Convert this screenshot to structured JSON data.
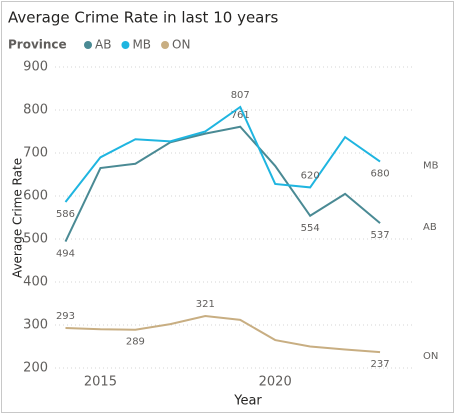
{
  "chart_data": {
    "type": "line",
    "title": "Average Crime Rate in last 10 years",
    "legend_title": "Province",
    "x_label": "Year",
    "y_label": "Average Crime Rate",
    "x": [
      2014,
      2015,
      2016,
      2017,
      2018,
      2019,
      2020,
      2021,
      2022,
      2023
    ],
    "series": [
      {
        "name": "AB",
        "color": "#4a8a94",
        "values": [
          494,
          665,
          675,
          725,
          745,
          761,
          670,
          554,
          605,
          537
        ],
        "value_labels": [
          "494",
          null,
          null,
          null,
          null,
          "761",
          null,
          "554",
          null,
          "537"
        ]
      },
      {
        "name": "MB",
        "color": "#1fb5e0",
        "values": [
          586,
          690,
          732,
          727,
          750,
          807,
          628,
          620,
          737,
          680
        ],
        "value_labels": [
          "586",
          null,
          null,
          null,
          null,
          "807",
          null,
          "620",
          null,
          "680"
        ]
      },
      {
        "name": "ON",
        "color": "#c8ae82",
        "values": [
          293,
          290,
          289,
          302,
          321,
          312,
          265,
          250,
          243,
          237
        ],
        "value_labels": [
          "293",
          null,
          "289",
          null,
          "321",
          null,
          null,
          null,
          null,
          "237"
        ]
      }
    ],
    "xlim": [
      2013.7,
      2024.0
    ],
    "xticks": [
      2015,
      2020
    ],
    "ylim": [
      200,
      900
    ],
    "yticks": [
      200,
      300,
      400,
      500,
      600,
      700,
      800,
      900
    ],
    "grid": true
  }
}
